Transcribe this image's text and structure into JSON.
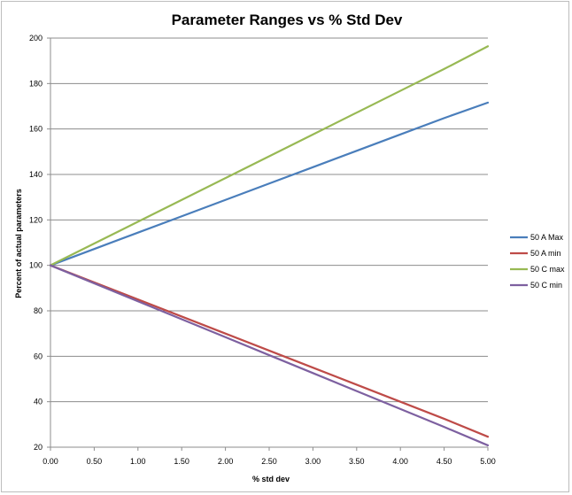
{
  "chart_data": {
    "type": "line",
    "title": "Parameter Ranges vs % Std Dev",
    "xlabel": "% std dev",
    "ylabel": "Percent of actual parameters",
    "x": [
      0.0,
      0.5,
      1.0,
      1.5,
      2.0,
      2.5,
      3.0,
      3.5,
      4.0,
      4.5,
      5.0
    ],
    "x_tick_labels": [
      "0.00",
      "0.50",
      "1.00",
      "1.50",
      "2.00",
      "2.50",
      "3.00",
      "3.50",
      "4.00",
      "4.50",
      "5.00"
    ],
    "y_ticks": [
      20,
      40,
      60,
      80,
      100,
      120,
      140,
      160,
      180,
      200
    ],
    "xlim": [
      0,
      5
    ],
    "ylim": [
      20,
      200
    ],
    "grid": "horizontal",
    "legend_position": "right",
    "series": [
      {
        "name": "50 A Max",
        "color": "#4a7ebb",
        "values": [
          100,
          107.2,
          114.4,
          121.6,
          128.8,
          136,
          143.2,
          150.4,
          157.6,
          164.8,
          171.6
        ]
      },
      {
        "name": "50 A min",
        "color": "#be4b48",
        "values": [
          100,
          92.5,
          85,
          77.5,
          70,
          62.5,
          55,
          47.5,
          40,
          32.5,
          24.6
        ]
      },
      {
        "name": "50 C max",
        "color": "#98b954",
        "values": [
          100,
          109.6,
          119.2,
          128.8,
          138.4,
          148,
          157.6,
          167.2,
          176.8,
          186.4,
          196.4
        ]
      },
      {
        "name": "50 C min",
        "color": "#7d60a0",
        "values": [
          100,
          92.1,
          84.2,
          76.3,
          68.4,
          60.5,
          52.6,
          44.7,
          36.8,
          28.9,
          20.8
        ]
      }
    ]
  }
}
